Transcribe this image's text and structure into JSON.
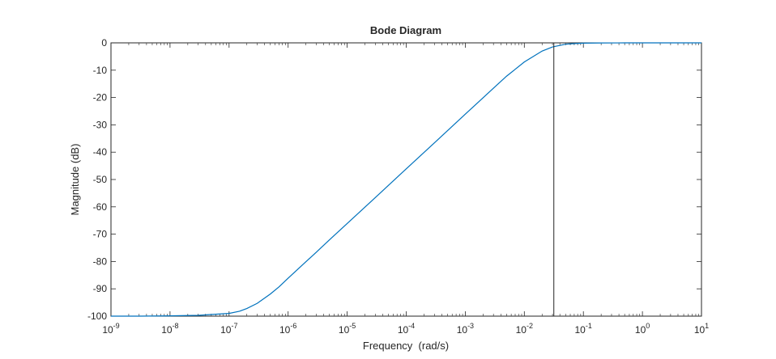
{
  "chart_data": {
    "type": "line",
    "title": "Bode Diagram",
    "xlabel": "Frequency  (rad/s)",
    "ylabel": "Magnitude (dB)",
    "xscale": "log",
    "xlim": [
      1e-09,
      10
    ],
    "ylim": [
      -100,
      0
    ],
    "x_ticks": [
      {
        "value": 1e-09,
        "base": "10",
        "exp": "-9"
      },
      {
        "value": 1e-08,
        "base": "10",
        "exp": "-8"
      },
      {
        "value": 1e-07,
        "base": "10",
        "exp": "-7"
      },
      {
        "value": 1e-06,
        "base": "10",
        "exp": "-6"
      },
      {
        "value": 1e-05,
        "base": "10",
        "exp": "-5"
      },
      {
        "value": 0.0001,
        "base": "10",
        "exp": "-4"
      },
      {
        "value": 0.001,
        "base": "10",
        "exp": "-3"
      },
      {
        "value": 0.01,
        "base": "10",
        "exp": "-2"
      },
      {
        "value": 0.1,
        "base": "10",
        "exp": "-1"
      },
      {
        "value": 1,
        "base": "10",
        "exp": "0"
      },
      {
        "value": 10,
        "base": "10",
        "exp": "1"
      }
    ],
    "y_ticks": [
      0,
      -10,
      -20,
      -30,
      -40,
      -50,
      -60,
      -70,
      -80,
      -90,
      -100
    ],
    "grid": false,
    "line_color": "#0072BD",
    "marker_line": {
      "x": 0.0316,
      "color": "#262626"
    },
    "series": [
      {
        "x": [
          1e-09,
          3e-09,
          1e-08,
          3e-08,
          1e-07,
          1.5e-07,
          2e-07,
          3e-07,
          5e-07,
          7e-07,
          1e-06,
          2e-06,
          3e-06,
          5e-06,
          1e-05,
          3e-05,
          0.0001,
          0.0003,
          0.001,
          0.003,
          0.005,
          0.01,
          0.02,
          0.03,
          0.05,
          0.07,
          0.1,
          0.2,
          0.5,
          1,
          10
        ],
        "y": [
          -100,
          -100,
          -99.9,
          -99.7,
          -99,
          -98.2,
          -97.2,
          -95.3,
          -91.9,
          -89.3,
          -86.1,
          -80.1,
          -76.6,
          -72.1,
          -66.1,
          -56.6,
          -46.1,
          -36.6,
          -26.1,
          -16.6,
          -12.2,
          -7.0,
          -3.0,
          -1.5,
          -0.5,
          -0.25,
          -0.12,
          -0.03,
          -0.01,
          0,
          0
        ]
      }
    ]
  }
}
